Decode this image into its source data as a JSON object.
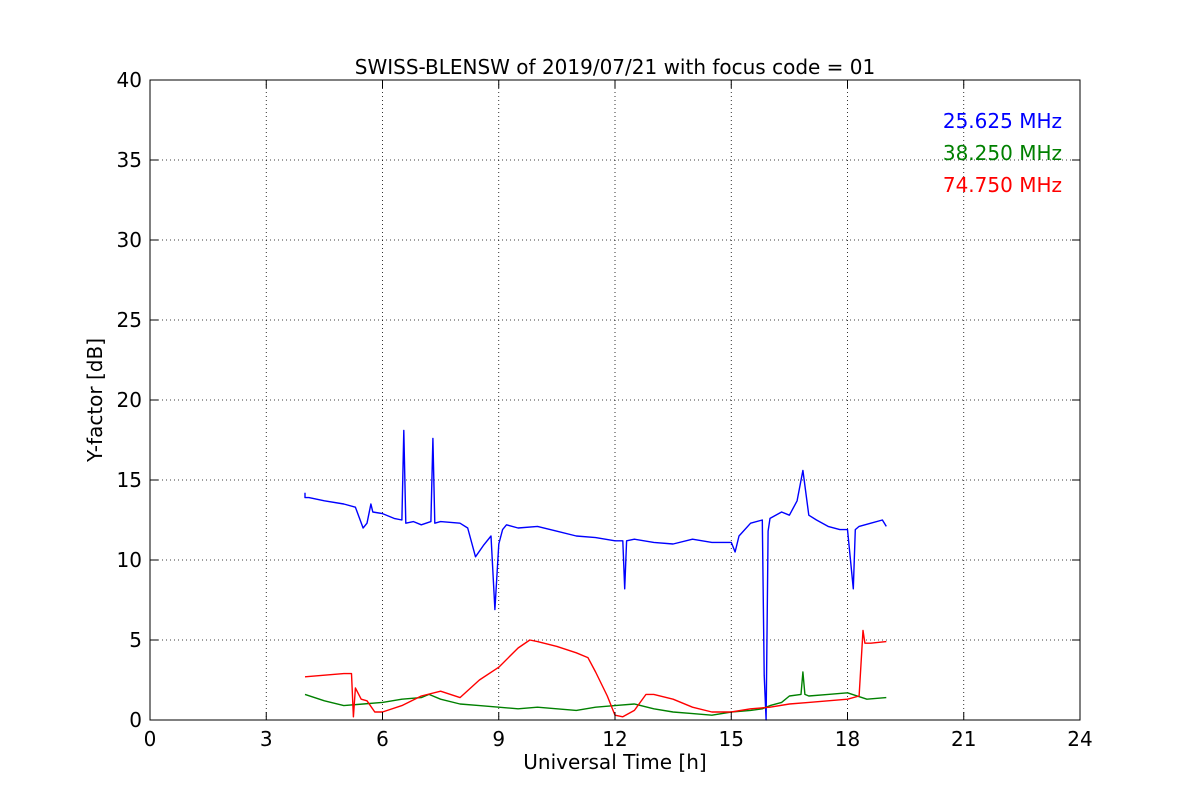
{
  "chart_data": {
    "type": "line",
    "title": "SWISS-BLENSW of 2019/07/21 with focus code = 01",
    "xlabel": "Universal Time [h]",
    "ylabel": "Y-factor [dB]",
    "xlim": [
      0,
      24
    ],
    "ylim": [
      0,
      40
    ],
    "xticks": [
      0,
      3,
      6,
      9,
      12,
      15,
      18,
      21,
      24
    ],
    "yticks": [
      0,
      5,
      10,
      15,
      20,
      25,
      30,
      35,
      40
    ],
    "grid": true,
    "legend_position": "top-right",
    "series": [
      {
        "name": "25.625 MHz",
        "color": "#0000ff",
        "x": [
          4.0,
          4.0,
          4.1,
          4.5,
          5.0,
          5.3,
          5.5,
          5.6,
          5.7,
          5.75,
          6.0,
          6.3,
          6.5,
          6.55,
          6.6,
          6.8,
          7.0,
          7.25,
          7.3,
          7.35,
          7.5,
          8.0,
          8.2,
          8.4,
          8.6,
          8.8,
          8.9,
          9.0,
          9.1,
          9.2,
          9.5,
          10.0,
          10.5,
          11.0,
          11.5,
          12.0,
          12.2,
          12.25,
          12.3,
          12.5,
          13.0,
          13.5,
          14.0,
          14.5,
          15.0,
          15.1,
          15.2,
          15.5,
          15.8,
          15.85,
          15.9,
          15.95,
          16.0,
          16.3,
          16.5,
          16.7,
          16.85,
          17.0,
          17.2,
          17.5,
          17.8,
          18.0,
          18.15,
          18.2,
          18.3,
          18.6,
          18.9,
          19.0
        ],
        "y": [
          14.2,
          13.9,
          13.9,
          13.7,
          13.5,
          13.3,
          12.0,
          12.3,
          13.5,
          13.0,
          12.9,
          12.6,
          12.5,
          18.1,
          12.3,
          12.4,
          12.2,
          12.4,
          17.6,
          12.3,
          12.4,
          12.3,
          12.0,
          10.2,
          10.9,
          11.5,
          6.9,
          11.0,
          11.9,
          12.2,
          12.0,
          12.1,
          11.8,
          11.5,
          11.4,
          11.2,
          11.2,
          8.2,
          11.2,
          11.3,
          11.1,
          11.0,
          11.3,
          11.1,
          11.1,
          10.5,
          11.5,
          12.3,
          12.5,
          2.8,
          0.0,
          11.8,
          12.6,
          13.0,
          12.8,
          13.7,
          15.6,
          12.8,
          12.5,
          12.1,
          11.9,
          11.9,
          8.2,
          11.9,
          12.1,
          12.3,
          12.5,
          12.1
        ]
      },
      {
        "name": "38.250 MHz",
        "color": "#008000",
        "x": [
          4.0,
          4.5,
          5.0,
          5.5,
          6.0,
          6.5,
          7.0,
          7.2,
          7.5,
          8.0,
          8.5,
          9.0,
          9.5,
          10.0,
          10.5,
          11.0,
          11.5,
          12.0,
          12.5,
          13.0,
          13.5,
          14.0,
          14.5,
          15.0,
          15.5,
          15.8,
          16.0,
          16.3,
          16.5,
          16.8,
          16.85,
          16.9,
          17.0,
          17.5,
          18.0,
          18.5,
          19.0
        ],
        "y": [
          1.6,
          1.2,
          0.9,
          1.0,
          1.1,
          1.3,
          1.4,
          1.6,
          1.3,
          1.0,
          0.9,
          0.8,
          0.7,
          0.8,
          0.7,
          0.6,
          0.8,
          0.9,
          1.0,
          0.7,
          0.5,
          0.4,
          0.3,
          0.5,
          0.6,
          0.7,
          0.9,
          1.1,
          1.5,
          1.6,
          3.0,
          1.6,
          1.5,
          1.6,
          1.7,
          1.3,
          1.4
        ]
      },
      {
        "name": "74.750 MHz",
        "color": "#ff0000",
        "x": [
          4.0,
          4.5,
          5.0,
          5.2,
          5.25,
          5.3,
          5.45,
          5.6,
          5.8,
          6.0,
          6.5,
          7.0,
          7.5,
          8.0,
          8.5,
          9.0,
          9.5,
          9.8,
          10.0,
          10.5,
          11.0,
          11.3,
          11.5,
          11.8,
          12.0,
          12.2,
          12.5,
          12.8,
          13.0,
          13.5,
          14.0,
          14.5,
          15.0,
          15.5,
          16.0,
          16.5,
          17.0,
          17.5,
          18.0,
          18.3,
          18.4,
          18.45,
          18.6,
          19.0
        ],
        "y": [
          2.7,
          2.8,
          2.9,
          2.9,
          0.2,
          2.0,
          1.3,
          1.2,
          0.5,
          0.5,
          0.9,
          1.5,
          1.8,
          1.4,
          2.5,
          3.3,
          4.5,
          5.0,
          4.9,
          4.6,
          4.2,
          3.9,
          3.0,
          1.5,
          0.3,
          0.2,
          0.6,
          1.6,
          1.6,
          1.3,
          0.8,
          0.5,
          0.5,
          0.7,
          0.8,
          1.0,
          1.1,
          1.2,
          1.3,
          1.5,
          5.6,
          4.8,
          4.8,
          4.9
        ]
      }
    ]
  }
}
